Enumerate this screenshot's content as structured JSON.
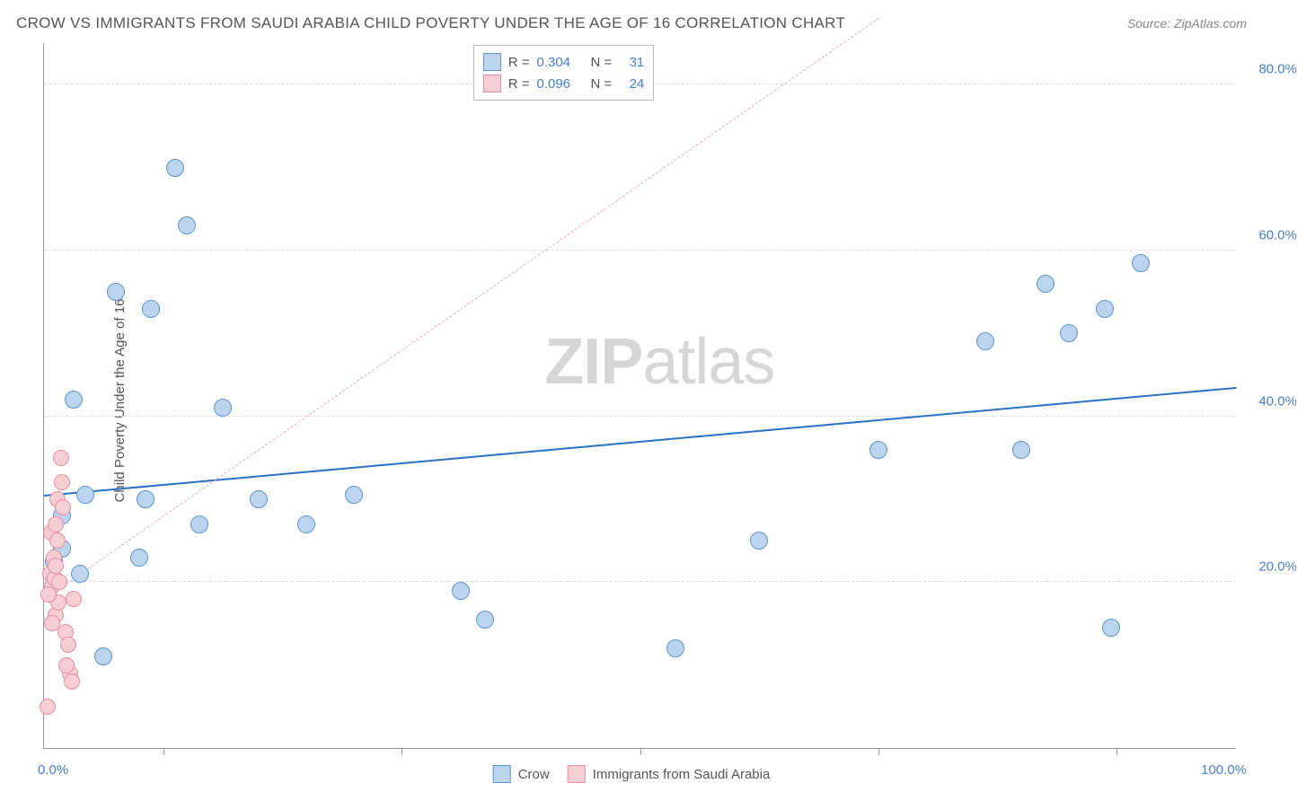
{
  "title": "CROW VS IMMIGRANTS FROM SAUDI ARABIA CHILD POVERTY UNDER THE AGE OF 16 CORRELATION CHART",
  "source_label": "Source: ",
  "source_name": "ZipAtlas.com",
  "watermark_text": "ZIPatlas",
  "y_axis_title": "Child Poverty Under the Age of 16",
  "x_axis": {
    "min_label": "0.0%",
    "max_label": "100.0%",
    "min": 0,
    "max": 100,
    "tick_positions": [
      10,
      30,
      50,
      70,
      90
    ]
  },
  "y_axis": {
    "min": 0,
    "max": 85,
    "grid_lines": [
      {
        "value": 20,
        "label": "20.0%"
      },
      {
        "value": 40,
        "label": "40.0%"
      },
      {
        "value": 60,
        "label": "60.0%"
      },
      {
        "value": 80,
        "label": "80.0%"
      }
    ]
  },
  "series": [
    {
      "name": "Crow",
      "label": "Crow",
      "fill_color": "#bcd4ee",
      "stroke_color": "#5e94d3",
      "point_radius": 10,
      "R": "0.304",
      "N": "31",
      "trend": {
        "x1": 0,
        "y1": 30.5,
        "x2": 100,
        "y2": 43.5,
        "color": "#2f6fc5",
        "width": 2.5,
        "dash": false
      },
      "points": [
        {
          "x": 1.5,
          "y": 28
        },
        {
          "x": 2.5,
          "y": 42
        },
        {
          "x": 6,
          "y": 55
        },
        {
          "x": 9,
          "y": 53
        },
        {
          "x": 11,
          "y": 70
        },
        {
          "x": 12,
          "y": 63
        },
        {
          "x": 1.5,
          "y": 24
        },
        {
          "x": 3,
          "y": 21
        },
        {
          "x": 3.5,
          "y": 30.5
        },
        {
          "x": 5,
          "y": 11
        },
        {
          "x": 8,
          "y": 23
        },
        {
          "x": 8.5,
          "y": 30
        },
        {
          "x": 13,
          "y": 27
        },
        {
          "x": 15,
          "y": 41
        },
        {
          "x": 18,
          "y": 30
        },
        {
          "x": 22,
          "y": 27
        },
        {
          "x": 26,
          "y": 30.5
        },
        {
          "x": 35,
          "y": 19
        },
        {
          "x": 37,
          "y": 15.5
        },
        {
          "x": 53,
          "y": 12
        },
        {
          "x": 60,
          "y": 25
        },
        {
          "x": 70,
          "y": 36
        },
        {
          "x": 79,
          "y": 49
        },
        {
          "x": 82,
          "y": 36
        },
        {
          "x": 84,
          "y": 56
        },
        {
          "x": 86,
          "y": 50
        },
        {
          "x": 89,
          "y": 53
        },
        {
          "x": 89.5,
          "y": 14.5
        },
        {
          "x": 92,
          "y": 58.5
        },
        {
          "x": 1,
          "y": 20
        },
        {
          "x": 0.8,
          "y": 22.5
        }
      ]
    },
    {
      "name": "Immigrants from Saudi Arabia",
      "label": "Immigrants from Saudi Arabia",
      "fill_color": "#f6cfd5",
      "stroke_color": "#e98ea0",
      "point_radius": 9,
      "R": "0.096",
      "N": "24",
      "trend": {
        "x1": 0,
        "y1": 18,
        "x2": 70,
        "y2": 88,
        "color": "#f0a9b5",
        "width": 1.4,
        "dash": true
      },
      "points": [
        {
          "x": 0.3,
          "y": 5
        },
        {
          "x": 0.5,
          "y": 21
        },
        {
          "x": 0.7,
          "y": 19.5
        },
        {
          "x": 0.8,
          "y": 23
        },
        {
          "x": 0.9,
          "y": 20.5
        },
        {
          "x": 1.0,
          "y": 16
        },
        {
          "x": 1.0,
          "y": 22
        },
        {
          "x": 1.1,
          "y": 30
        },
        {
          "x": 1.2,
          "y": 17.5
        },
        {
          "x": 1.3,
          "y": 20
        },
        {
          "x": 1.4,
          "y": 35
        },
        {
          "x": 1.5,
          "y": 32
        },
        {
          "x": 1.6,
          "y": 29
        },
        {
          "x": 1.8,
          "y": 14
        },
        {
          "x": 2.0,
          "y": 12.5
        },
        {
          "x": 2.2,
          "y": 9
        },
        {
          "x": 2.3,
          "y": 8
        },
        {
          "x": 2.5,
          "y": 18
        },
        {
          "x": 0.6,
          "y": 26
        },
        {
          "x": 0.4,
          "y": 18.5
        },
        {
          "x": 1.1,
          "y": 25
        },
        {
          "x": 0.7,
          "y": 15
        },
        {
          "x": 1.9,
          "y": 10
        },
        {
          "x": 1.0,
          "y": 27
        }
      ]
    }
  ],
  "legend_top": {
    "r_label": "R =",
    "n_label": "N ="
  },
  "colors": {
    "title_text": "#555555",
    "axis_text": "#4a7ec9",
    "grid": "#dddddd",
    "background": "#ffffff"
  }
}
